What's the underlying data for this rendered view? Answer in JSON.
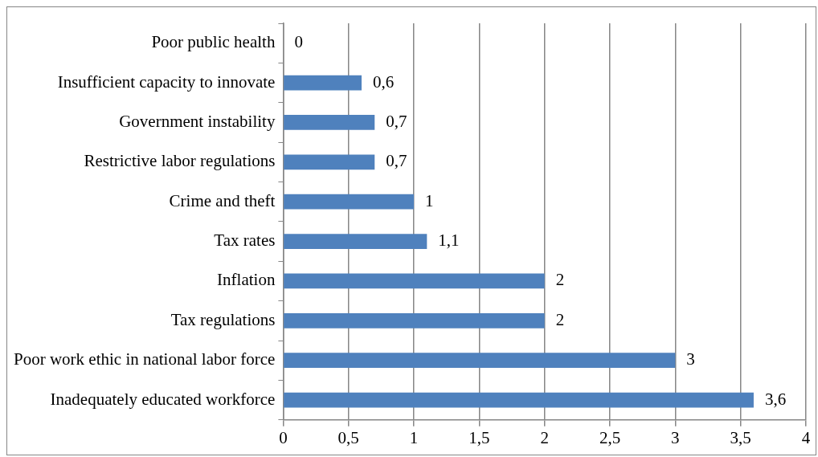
{
  "chart_data": {
    "type": "bar",
    "orientation": "horizontal",
    "categories": [
      "Poor public health",
      "Insufficient capacity to innovate",
      "Government instability",
      "Restrictive labor regulations",
      "Crime and theft",
      "Tax rates",
      "Inflation",
      "Tax regulations",
      "Poor work ethic in national labor force",
      "Inadequately educated workforce"
    ],
    "values": [
      0,
      0.6,
      0.7,
      0.7,
      1,
      1.1,
      2,
      2,
      3,
      3.6
    ],
    "value_labels": [
      "0",
      "0,6",
      "0,7",
      "0,7",
      "1",
      "1,1",
      "2",
      "2",
      "3",
      "3,6"
    ],
    "color": "#4f81bd",
    "xlim": [
      0,
      4
    ],
    "xticks": [
      0,
      {
        "value": 0.5,
        "label": "0,5"
      },
      1,
      {
        "value": 1.5,
        "label": "1,5"
      },
      2,
      {
        "value": 2.5,
        "label": "2,5"
      },
      3,
      {
        "value": 3.5,
        "label": "3,5"
      },
      4
    ],
    "grid": "x",
    "legend": false
  }
}
